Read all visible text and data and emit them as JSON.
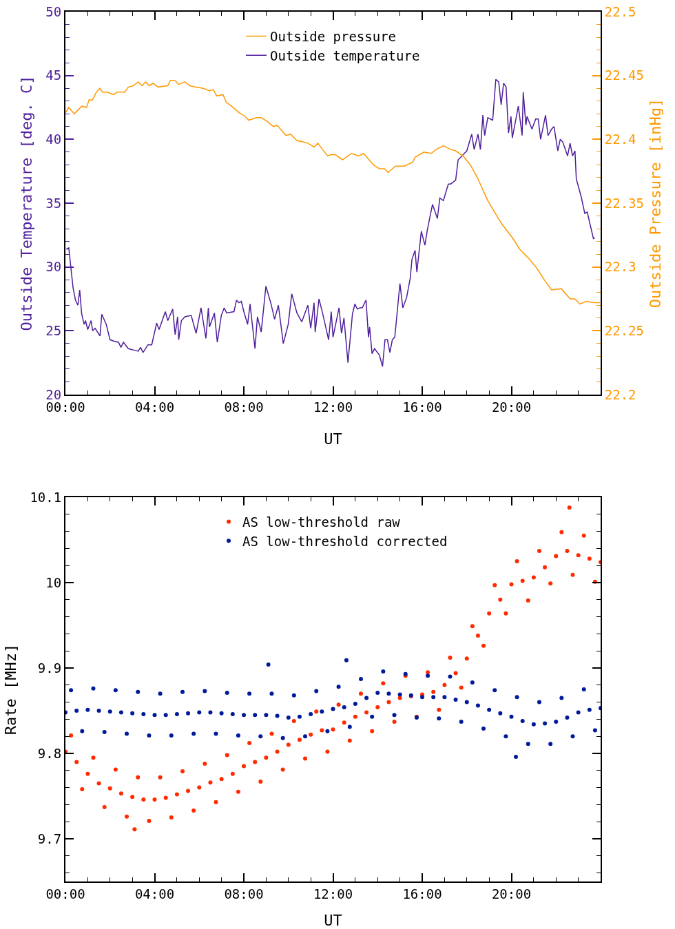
{
  "chart_data": [
    {
      "type": "line",
      "xlabel": "UT",
      "ylabel": "Outside Temperature [deg. C]",
      "y2label": "Outside Pressure [inHg]",
      "xlim": [
        0,
        24
      ],
      "xticks": [
        {
          "value": 0,
          "label": "00:00"
        },
        {
          "value": 4,
          "label": "04:00"
        },
        {
          "value": 8,
          "label": "08:00"
        },
        {
          "value": 12,
          "label": "12:00"
        },
        {
          "value": 16,
          "label": "16:00"
        },
        {
          "value": 20,
          "label": "20:00"
        }
      ],
      "ylim": [
        20,
        50
      ],
      "yticks": [
        20,
        25,
        30,
        35,
        40,
        45,
        50
      ],
      "y2lim": [
        22.2,
        22.5
      ],
      "y2ticks": [
        22.2,
        22.25,
        22.3,
        22.35,
        22.4,
        22.45,
        22.5
      ],
      "legend": "top",
      "grid": false,
      "line_style": "solid",
      "series": [
        {
          "name": "Outside pressure",
          "color": "#ff9900",
          "axis": "y2",
          "x": [
            0.01,
            0.15,
            0.4,
            0.73,
            0.95,
            1.06,
            1.22,
            1.39,
            1.55,
            1.66,
            1.88,
            2.16,
            2.32,
            2.66,
            2.82,
            3.04,
            3.26,
            3.43,
            3.6,
            3.76,
            3.93,
            4.15,
            4.59,
            4.7,
            4.92,
            5.08,
            5.36,
            5.58,
            5.8,
            6.18,
            6.46,
            6.63,
            6.79,
            7.07,
            7.21,
            7.45,
            7.78,
            8.06,
            8.22,
            8.56,
            8.78,
            9.05,
            9.33,
            9.5,
            9.88,
            10.1,
            10.38,
            10.65,
            10.87,
            11.15,
            11.32,
            11.53,
            11.76,
            11.92,
            12.1,
            12.43,
            12.82,
            13.15,
            13.37,
            13.81,
            14.08,
            14.31,
            14.47,
            14.8,
            15.19,
            15.57,
            15.68,
            16.07,
            16.4,
            16.62,
            16.95,
            17.28,
            17.5,
            17.83,
            18.16,
            18.5,
            18.94,
            19.38,
            19.6,
            20.04,
            20.37,
            20.81,
            21.14,
            21.47,
            21.8,
            22.24,
            22.63,
            22.85,
            23.07,
            23.35,
            23.73,
            23.98
          ],
          "values": [
            22.421,
            22.425,
            22.42,
            22.426,
            22.425,
            22.431,
            22.431,
            22.437,
            22.44,
            22.437,
            22.437,
            22.435,
            22.437,
            22.437,
            22.441,
            22.442,
            22.445,
            22.442,
            22.445,
            22.442,
            22.444,
            22.441,
            22.442,
            22.446,
            22.446,
            22.443,
            22.445,
            22.442,
            22.441,
            22.44,
            22.438,
            22.439,
            22.434,
            22.435,
            22.429,
            22.426,
            22.421,
            22.418,
            22.415,
            22.417,
            22.417,
            22.414,
            22.41,
            22.411,
            22.403,
            22.404,
            22.399,
            22.398,
            22.397,
            22.394,
            22.397,
            22.392,
            22.387,
            22.388,
            22.388,
            22.384,
            22.389,
            22.387,
            22.389,
            22.38,
            22.377,
            22.377,
            22.374,
            22.379,
            22.379,
            22.382,
            22.386,
            22.39,
            22.389,
            22.392,
            22.395,
            22.392,
            22.391,
            22.387,
            22.38,
            22.369,
            22.352,
            22.339,
            22.333,
            22.323,
            22.314,
            22.306,
            22.299,
            22.29,
            22.282,
            22.283,
            22.275,
            22.275,
            22.271,
            22.273,
            22.272,
            22.272
          ]
        },
        {
          "name": "Outside temperature",
          "color": "#4f1f9c",
          "x": [
            0.04,
            0.15,
            0.34,
            0.45,
            0.56,
            0.64,
            0.73,
            0.84,
            0.9,
            1.0,
            1.15,
            1.22,
            1.33,
            1.55,
            1.63,
            1.83,
            2.0,
            2.16,
            2.38,
            2.49,
            2.6,
            2.82,
            3.04,
            3.26,
            3.37,
            3.48,
            3.7,
            3.87,
            4.09,
            4.2,
            4.48,
            4.59,
            4.81,
            4.92,
            5.03,
            5.08,
            5.2,
            5.36,
            5.64,
            5.86,
            6.08,
            6.3,
            6.41,
            6.46,
            6.68,
            6.81,
            6.99,
            7.12,
            7.23,
            7.56,
            7.67,
            7.78,
            7.89,
            8.0,
            8.17,
            8.28,
            8.5,
            8.61,
            8.78,
            8.99,
            9.22,
            9.38,
            9.55,
            9.77,
            9.99,
            10.15,
            10.38,
            10.6,
            10.87,
            11.0,
            11.15,
            11.2,
            11.37,
            11.53,
            11.8,
            11.92,
            12.0,
            12.27,
            12.38,
            12.49,
            12.67,
            12.87,
            12.98,
            13.09,
            13.2,
            13.31,
            13.48,
            13.59,
            13.64,
            13.75,
            13.86,
            14.08,
            14.22,
            14.33,
            14.44,
            14.55,
            14.66,
            14.77,
            15.0,
            15.13,
            15.3,
            15.46,
            15.54,
            15.68,
            15.76,
            15.96,
            16.12,
            16.23,
            16.46,
            16.68,
            16.79,
            16.95,
            17.17,
            17.28,
            17.5,
            17.61,
            17.78,
            17.89,
            18.0,
            18.22,
            18.33,
            18.5,
            18.61,
            18.72,
            18.8,
            18.94,
            19.16,
            19.3,
            19.43,
            19.54,
            19.65,
            19.76,
            19.87,
            19.98,
            20.04,
            20.31,
            20.48,
            20.53,
            20.65,
            20.7,
            20.92,
            21.09,
            21.2,
            21.31,
            21.53,
            21.64,
            21.8,
            21.91,
            22.08,
            22.19,
            22.3,
            22.52,
            22.63,
            22.74,
            22.85,
            22.91,
            23.13,
            23.29,
            23.4,
            23.68,
            23.73
          ],
          "values": [
            31.4,
            31.5,
            28.4,
            27.4,
            27.0,
            28.2,
            26.3,
            25.5,
            25.8,
            25.1,
            25.8,
            25.0,
            25.2,
            24.6,
            26.3,
            25.5,
            24.3,
            24.2,
            24.1,
            23.7,
            24.1,
            23.6,
            23.5,
            23.4,
            23.7,
            23.3,
            23.9,
            23.9,
            25.6,
            25.1,
            26.5,
            25.8,
            26.7,
            24.7,
            26.1,
            24.3,
            25.8,
            26.1,
            26.2,
            24.8,
            26.8,
            24.4,
            26.8,
            25.3,
            26.4,
            24.1,
            26.2,
            26.8,
            26.4,
            26.5,
            27.4,
            27.2,
            27.3,
            26.5,
            25.5,
            27.1,
            23.6,
            26.1,
            24.9,
            28.5,
            27.1,
            25.9,
            27.0,
            24.0,
            25.5,
            27.9,
            26.4,
            25.7,
            27.0,
            25.2,
            27.2,
            24.9,
            27.5,
            26.4,
            24.3,
            26.5,
            24.5,
            26.8,
            24.8,
            26.0,
            22.5,
            26.3,
            27.1,
            26.7,
            26.8,
            26.8,
            27.4,
            24.5,
            25.3,
            23.2,
            23.6,
            23.1,
            22.2,
            24.3,
            24.3,
            23.3,
            24.3,
            24.5,
            28.7,
            26.8,
            27.6,
            29.1,
            30.6,
            31.3,
            29.6,
            32.8,
            31.7,
            32.9,
            34.9,
            33.8,
            35.4,
            35.2,
            36.5,
            36.5,
            36.8,
            38.4,
            38.7,
            38.9,
            39.1,
            40.4,
            39.2,
            40.4,
            39.2,
            41.9,
            40.3,
            41.7,
            41.5,
            44.7,
            44.5,
            42.7,
            44.4,
            44.1,
            40.5,
            41.8,
            40.1,
            42.6,
            40.3,
            43.7,
            41.1,
            41.8,
            40.8,
            41.6,
            41.6,
            40.0,
            41.9,
            40.3,
            40.8,
            41.0,
            39.1,
            40.0,
            39.8,
            38.7,
            39.7,
            38.7,
            39.1,
            36.9,
            35.5,
            34.2,
            34.3,
            32.2,
            32.3
          ]
        }
      ]
    },
    {
      "type": "scatter",
      "xlabel": "UT",
      "ylabel": "Rate [MHz]",
      "xlim": [
        0,
        24
      ],
      "xticks": [
        {
          "value": 0,
          "label": "00:00"
        },
        {
          "value": 4,
          "label": "04:00"
        },
        {
          "value": 8,
          "label": "08:00"
        },
        {
          "value": 12,
          "label": "12:00"
        },
        {
          "value": 16,
          "label": "16:00"
        },
        {
          "value": 20,
          "label": "20:00"
        }
      ],
      "ylim": [
        9.65,
        10.1
      ],
      "yticks": [
        9.7,
        9.8,
        9.9,
        10,
        10.1
      ],
      "legend": "top",
      "grid": false,
      "marker": "circle",
      "series": [
        {
          "name": "AS low-threshold raw",
          "color": "#ff2a00",
          "x": [
            0,
            0.25,
            0.5,
            0.75,
            1,
            1.25,
            1.5,
            1.75,
            2,
            2.25,
            2.5,
            2.75,
            3,
            3.1,
            3.25,
            3.5,
            3.75,
            4,
            4.25,
            4.5,
            4.75,
            5,
            5.25,
            5.5,
            5.75,
            6,
            6.25,
            6.5,
            6.75,
            7,
            7.25,
            7.5,
            7.75,
            8,
            8.25,
            8.5,
            8.75,
            9,
            9.25,
            9.5,
            9.75,
            10,
            10.25,
            10.5,
            10.75,
            11,
            11.25,
            11.5,
            11.75,
            12,
            12.25,
            12.5,
            12.75,
            13,
            13.25,
            13.5,
            13.75,
            14,
            14.25,
            14.5,
            14.75,
            15,
            15.25,
            15.5,
            15.75,
            16,
            16.25,
            16.5,
            16.75,
            17,
            17.25,
            17.5,
            17.75,
            18,
            18.25,
            18.5,
            18.75,
            19,
            19.25,
            19.5,
            19.75,
            20,
            20.25,
            20.5,
            20.75,
            21,
            21.25,
            21.5,
            21.75,
            22,
            22.25,
            22.5,
            22.6,
            22.75,
            23,
            23.25,
            23.5,
            23.75,
            24
          ],
          "values": [
            9.802,
            9.821,
            9.79,
            9.758,
            9.776,
            9.795,
            9.765,
            9.737,
            9.759,
            9.781,
            9.753,
            9.726,
            9.749,
            9.711,
            9.772,
            9.746,
            9.721,
            9.746,
            9.772,
            9.748,
            9.725,
            9.752,
            9.779,
            9.756,
            9.733,
            9.76,
            9.788,
            9.766,
            9.743,
            9.77,
            9.798,
            9.776,
            9.755,
            9.785,
            9.812,
            9.79,
            9.767,
            9.795,
            9.823,
            9.802,
            9.781,
            9.81,
            9.838,
            9.816,
            9.794,
            9.822,
            9.849,
            9.827,
            9.802,
            9.828,
            9.857,
            9.836,
            9.815,
            9.843,
            9.87,
            9.848,
            9.826,
            9.854,
            9.882,
            9.86,
            9.837,
            9.865,
            9.891,
            9.867,
            9.843,
            9.869,
            9.895,
            9.872,
            9.851,
            9.88,
            9.912,
            9.894,
            9.877,
            9.911,
            9.949,
            9.938,
            9.926,
            9.964,
            9.997,
            9.98,
            9.964,
            9.998,
            10.025,
            10.002,
            9.979,
            10.006,
            10.037,
            10.018,
            9.999,
            10.031,
            10.059,
            10.037,
            10.088,
            10.009,
            10.032,
            10.055,
            10.028,
            10.001,
            10.024
          ]
        },
        {
          "name": "AS low-threshold corrected",
          "color": "#001a99",
          "x": [
            0,
            0.25,
            0.5,
            0.75,
            1,
            1.25,
            1.5,
            1.75,
            2,
            2.25,
            2.5,
            2.75,
            3,
            3.25,
            3.5,
            3.75,
            4,
            4.25,
            4.5,
            4.75,
            5,
            5.25,
            5.5,
            5.75,
            6,
            6.25,
            6.5,
            6.75,
            7,
            7.25,
            7.5,
            7.75,
            8,
            8.25,
            8.5,
            8.75,
            9,
            9.1,
            9.25,
            9.5,
            9.75,
            10,
            10.25,
            10.5,
            10.75,
            11,
            11.25,
            11.5,
            11.75,
            12,
            12.25,
            12.5,
            12.6,
            12.75,
            13,
            13.25,
            13.5,
            13.75,
            14,
            14.25,
            14.5,
            14.75,
            15,
            15.25,
            15.5,
            15.75,
            16,
            16.25,
            16.5,
            16.75,
            17,
            17.25,
            17.5,
            17.75,
            18,
            18.25,
            18.5,
            18.75,
            19,
            19.25,
            19.5,
            19.75,
            20,
            20.2,
            20.25,
            20.5,
            20.75,
            21,
            21.25,
            21.5,
            21.75,
            22,
            22.25,
            22.5,
            22.75,
            23,
            23.25,
            23.5,
            23.75,
            24
          ],
          "values": [
            9.848,
            9.874,
            9.85,
            9.826,
            9.851,
            9.876,
            9.85,
            9.825,
            9.849,
            9.874,
            9.848,
            9.823,
            9.847,
            9.872,
            9.846,
            9.821,
            9.845,
            9.87,
            9.845,
            9.821,
            9.846,
            9.872,
            9.847,
            9.823,
            9.848,
            9.873,
            9.848,
            9.823,
            9.847,
            9.871,
            9.846,
            9.821,
            9.845,
            9.87,
            9.845,
            9.82,
            9.845,
            9.904,
            9.87,
            9.844,
            9.818,
            9.842,
            9.868,
            9.843,
            9.82,
            9.846,
            9.873,
            9.849,
            9.826,
            9.852,
            9.878,
            9.854,
            9.909,
            9.831,
            9.858,
            9.887,
            9.865,
            9.843,
            9.871,
            9.896,
            9.87,
            9.845,
            9.869,
            9.893,
            9.868,
            9.842,
            9.866,
            9.891,
            9.866,
            9.841,
            9.866,
            9.89,
            9.863,
            9.837,
            9.86,
            9.883,
            9.856,
            9.829,
            9.851,
            9.874,
            9.847,
            9.82,
            9.843,
            9.796,
            9.866,
            9.838,
            9.811,
            9.834,
            9.86,
            9.835,
            9.811,
            9.837,
            9.865,
            9.842,
            9.82,
            9.848,
            9.875,
            9.851,
            9.827,
            9.853
          ]
        }
      ]
    }
  ]
}
